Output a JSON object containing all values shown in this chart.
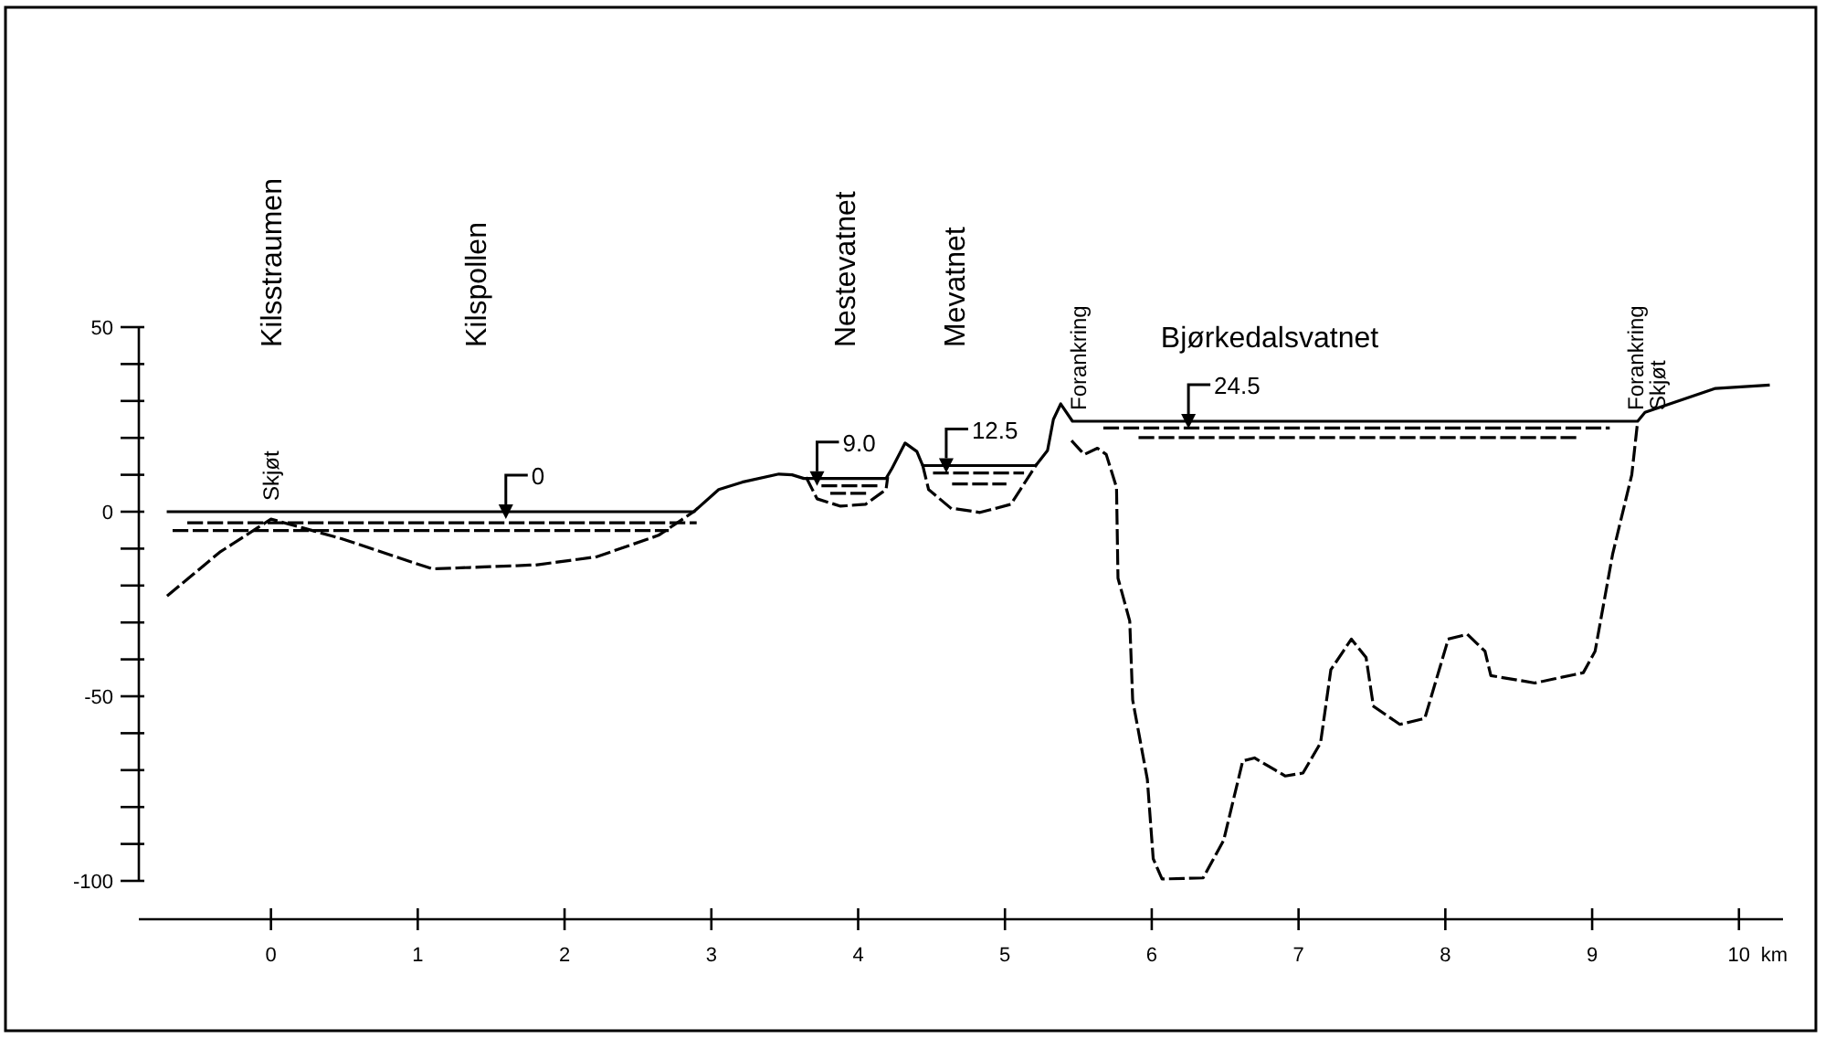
{
  "chart_data": {
    "type": "line",
    "xlabel": "km",
    "xlim": [
      -0.9,
      10.3
    ],
    "ylim": [
      -100,
      50
    ],
    "xticks": [
      0,
      1,
      2,
      3,
      4,
      5,
      6,
      7,
      8,
      9,
      10
    ],
    "yticks": [
      50,
      {
        "value": 40,
        "label": null
      },
      {
        "value": 30,
        "label": null
      },
      {
        "value": 20,
        "label": null
      },
      {
        "value": 10,
        "label": null
      },
      0,
      {
        "value": -10,
        "label": null
      },
      {
        "value": -20,
        "label": null
      },
      {
        "value": -30,
        "label": null
      },
      {
        "value": -40,
        "label": null
      },
      -50,
      {
        "value": -60,
        "label": null
      },
      {
        "value": -70,
        "label": null
      },
      {
        "value": -80,
        "label": null
      },
      {
        "value": -90,
        "label": null
      },
      -100
    ],
    "grid": false,
    "marker": "none",
    "series": [
      {
        "color": "#000000",
        "line_style": "solid",
        "x": [
          -0.7,
          2.88,
          3.05,
          3.21,
          3.46,
          3.55,
          3.63,
          4.19,
          4.23,
          4.32,
          4.4,
          4.44,
          5.21,
          5.29,
          5.33,
          5.38,
          5.46,
          9.31,
          9.36,
          9.84,
          10.2
        ],
        "values": [
          0,
          0,
          6,
          8,
          10.2,
          10,
          9,
          9,
          11.7,
          18.6,
          16.3,
          12.5,
          12.5,
          16.6,
          25,
          29.2,
          24.5,
          24.5,
          26.9,
          33.4,
          34.3
        ]
      },
      {
        "color": "#000000",
        "line_style": "dashed",
        "x": [
          -0.7,
          -0.35,
          0,
          0.48,
          1.1,
          1.81,
          2.22,
          2.64,
          2.88,
          null,
          3.65,
          3.72,
          3.88,
          4.05,
          4.19,
          4.2,
          null,
          4.44,
          4.48,
          4.63,
          4.83,
          5.04,
          5.21,
          null,
          5.46,
          5.54,
          5.63,
          5.69,
          5.76,
          5.77,
          5.85,
          5.87,
          5.97,
          6.01,
          6.07,
          6.35,
          6.49,
          6.62,
          6.7,
          6.91,
          7.03,
          7.15,
          7.22,
          7.36,
          7.46,
          7.51,
          7.69,
          7.86,
          8.02,
          8.15,
          8.27,
          8.31,
          8.61,
          8.94,
          9.02,
          9.14,
          9.27,
          9.31
        ],
        "values": [
          -22.6,
          -11,
          -2,
          -7.3,
          -15.5,
          -14.4,
          -12.2,
          -6.4,
          0,
          null,
          9,
          3.5,
          1.5,
          2,
          6,
          9,
          null,
          12.5,
          6,
          1,
          -0.2,
          2,
          12.5,
          null,
          19,
          15.5,
          17.2,
          15.5,
          6.6,
          -18,
          -29.6,
          -51,
          -72.5,
          -94,
          -99.5,
          -99.2,
          -89,
          -67.5,
          -66.7,
          -71.6,
          -70.8,
          -62.6,
          -42.8,
          -34.5,
          -39.5,
          -52.7,
          -57.6,
          -56,
          -34.5,
          -33.2,
          -37.8,
          -44.4,
          -46.4,
          -43.6,
          -37.8,
          -11.4,
          10,
          24.5
        ]
      },
      {
        "color": "#000000",
        "line_style": "dashed",
        "x": [
          -0.56,
          2.89,
          null,
          -0.66,
          2.7,
          null,
          3.76,
          4.13,
          null,
          3.82,
          4.05,
          null,
          4.52,
          5.12,
          null,
          4.65,
          5.0,
          null,
          5.68,
          9.11,
          null,
          5.92,
          8.9
        ],
        "values": [
          -3,
          -3,
          null,
          -5.1,
          -5.1,
          null,
          7,
          7,
          null,
          5,
          5,
          null,
          10.5,
          10.5,
          null,
          7.5,
          7.5,
          null,
          22.7,
          22.7,
          null,
          20.1,
          20.1
        ]
      },
      {
        "type": "scatter",
        "color": "#000000",
        "marker": "triangle",
        "x": [
          1.6,
          3.72,
          4.6,
          6.25
        ],
        "values": [
          0,
          9,
          12.5,
          24.5
        ],
        "value_labels": [
          "0",
          "9.0",
          "12.5",
          "24.5"
        ]
      }
    ],
    "annotations": [
      "Kilsstraumen",
      "Kilspollen",
      "Nestevatnet",
      "Mevatnet",
      "Bjørkedalsvatnet",
      {
        "text": "Skjøt",
        "x": 0,
        "y": 0
      },
      {
        "text": "Forankring",
        "x": 5.5,
        "y": 24.5
      },
      {
        "text": "Forankring\nSkjøt",
        "x": 9.3,
        "y": 24.5
      }
    ]
  }
}
